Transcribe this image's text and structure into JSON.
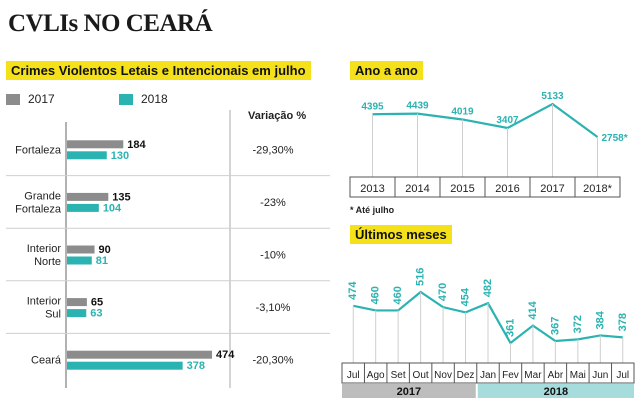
{
  "title": "CVLIs NO CEARÁ",
  "colors": {
    "y2017": "#8c8c8c",
    "y2018": "#2bb3b1",
    "highlight": "#f5e11a"
  },
  "chart_data": [
    {
      "type": "bar",
      "title": "Crimes Violentos Letais e Intencionais em julho",
      "legend": [
        "2017",
        "2018"
      ],
      "variation_header": "Variação %",
      "categories": [
        {
          "lines": [
            "Fortaleza"
          ],
          "v2017": 184,
          "v2018": 130,
          "variation": "-29,30%"
        },
        {
          "lines": [
            "Grande",
            "Fortaleza"
          ],
          "v2017": 135,
          "v2018": 104,
          "variation": "-23%"
        },
        {
          "lines": [
            "Interior",
            "Norte"
          ],
          "v2017": 90,
          "v2018": 81,
          "variation": "-10%"
        },
        {
          "lines": [
            "Interior",
            "Sul"
          ],
          "v2017": 65,
          "v2018": 63,
          "variation": "-3,10%"
        },
        {
          "lines": [
            "Ceará"
          ],
          "v2017": 474,
          "v2018": 378,
          "variation": "-20,30%"
        }
      ]
    },
    {
      "type": "line",
      "title": "Ano a ano",
      "x": [
        "2013",
        "2014",
        "2015",
        "2016",
        "2017",
        "2018*"
      ],
      "values": [
        4395,
        4439,
        4019,
        3407,
        5133,
        2758
      ],
      "value_labels": [
        "4395",
        "4439",
        "4019",
        "3407",
        "5133",
        "2758*"
      ],
      "note": "* Até julho"
    },
    {
      "type": "line",
      "title": "Últimos meses",
      "x": [
        "Jul",
        "Ago",
        "Set",
        "Out",
        "Nov",
        "Dez",
        "Jan",
        "Fev",
        "Mar",
        "Abr",
        "Mai",
        "Jun",
        "Jul"
      ],
      "values": [
        474,
        460,
        460,
        516,
        470,
        454,
        482,
        361,
        414,
        367,
        372,
        384,
        378
      ],
      "groups": [
        {
          "label": "2017",
          "from": 0,
          "to": 5
        },
        {
          "label": "2018",
          "from": 6,
          "to": 12
        }
      ]
    }
  ]
}
